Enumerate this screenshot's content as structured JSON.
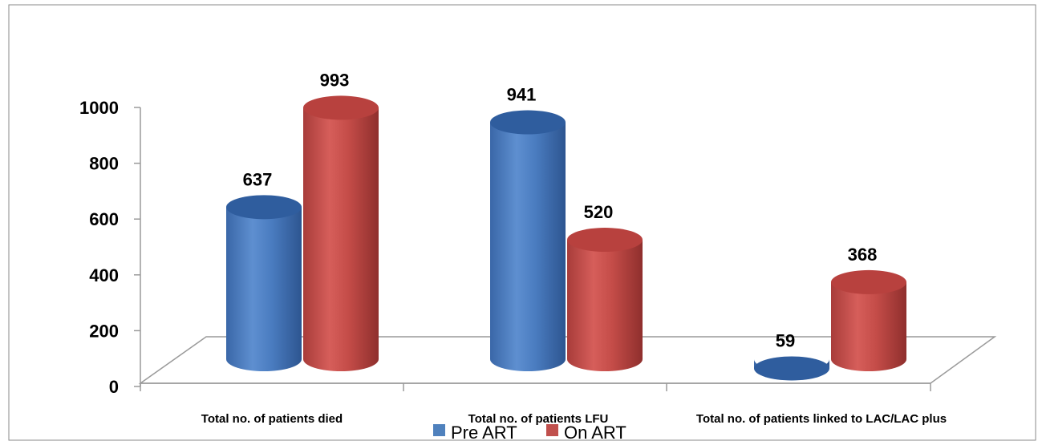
{
  "chart_data": {
    "type": "bar",
    "categories": [
      "Total no. of patients died",
      "Total no. of patients LFU",
      "Total no. of patients linked to LAC/LAC plus"
    ],
    "series": [
      {
        "name": "Pre ART",
        "values": [
          637,
          941,
          59
        ],
        "color": "#4f81bd"
      },
      {
        "name": "On ART",
        "values": [
          993,
          520,
          368
        ],
        "color": "#c0504d"
      }
    ],
    "ylim": [
      0,
      1000
    ],
    "yticks": [
      0,
      200,
      400,
      600,
      800,
      1000
    ],
    "grid": false,
    "legend": "bottom",
    "style": "3d-cylinder"
  }
}
